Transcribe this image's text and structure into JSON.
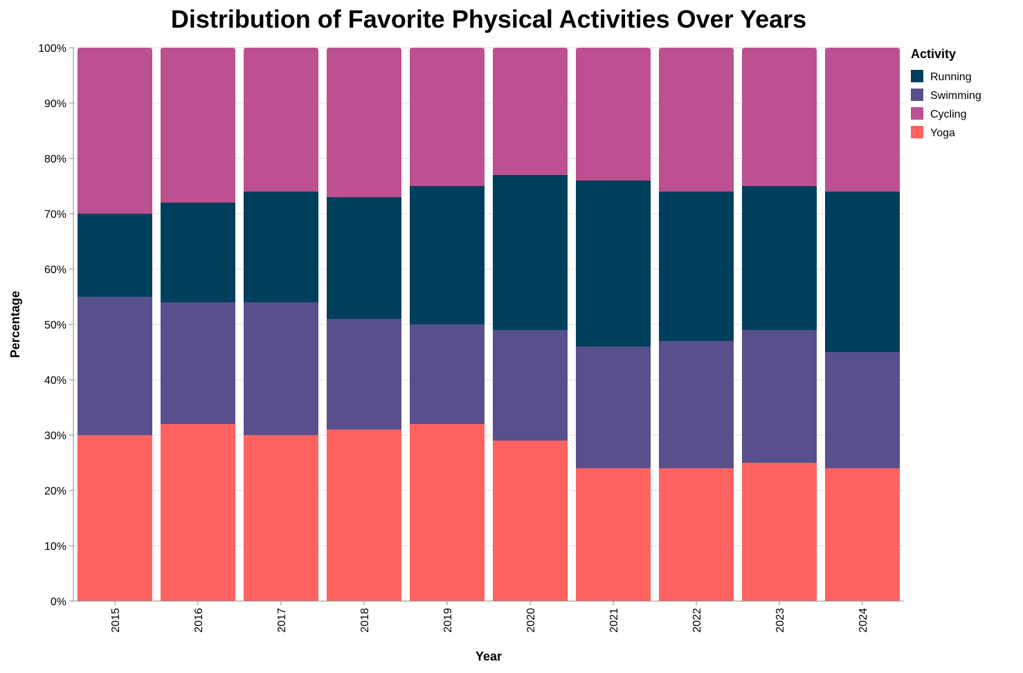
{
  "chart_data": {
    "type": "bar",
    "stacked": true,
    "normalized": true,
    "title": "Distribution of Favorite Physical Activities Over Years",
    "xlabel": "Year",
    "ylabel": "Percentage",
    "ylim": [
      0,
      100
    ],
    "y_ticks": [
      "0%",
      "10%",
      "20%",
      "30%",
      "40%",
      "50%",
      "60%",
      "70%",
      "80%",
      "90%",
      "100%"
    ],
    "grid": "horizontal",
    "legend_title": "Activity",
    "legend_position": "right",
    "categories": [
      "2015",
      "2016",
      "2017",
      "2018",
      "2019",
      "2020",
      "2021",
      "2022",
      "2023",
      "2024"
    ],
    "legend_order": [
      "Running",
      "Swimming",
      "Cycling",
      "Yoga"
    ],
    "series": [
      {
        "name": "Yoga",
        "color": "#ff6361",
        "values": [
          30,
          32,
          30,
          31,
          32,
          29,
          24,
          24,
          25,
          24
        ]
      },
      {
        "name": "Swimming",
        "color": "#58508d",
        "values": [
          25,
          22,
          24,
          20,
          18,
          20,
          22,
          23,
          24,
          21
        ]
      },
      {
        "name": "Running",
        "color": "#003f5c",
        "values": [
          15,
          18,
          20,
          22,
          25,
          28,
          30,
          27,
          26,
          29
        ]
      },
      {
        "name": "Cycling",
        "color": "#bc5090",
        "values": [
          30,
          28,
          26,
          27,
          25,
          23,
          24,
          26,
          25,
          26
        ]
      }
    ]
  }
}
